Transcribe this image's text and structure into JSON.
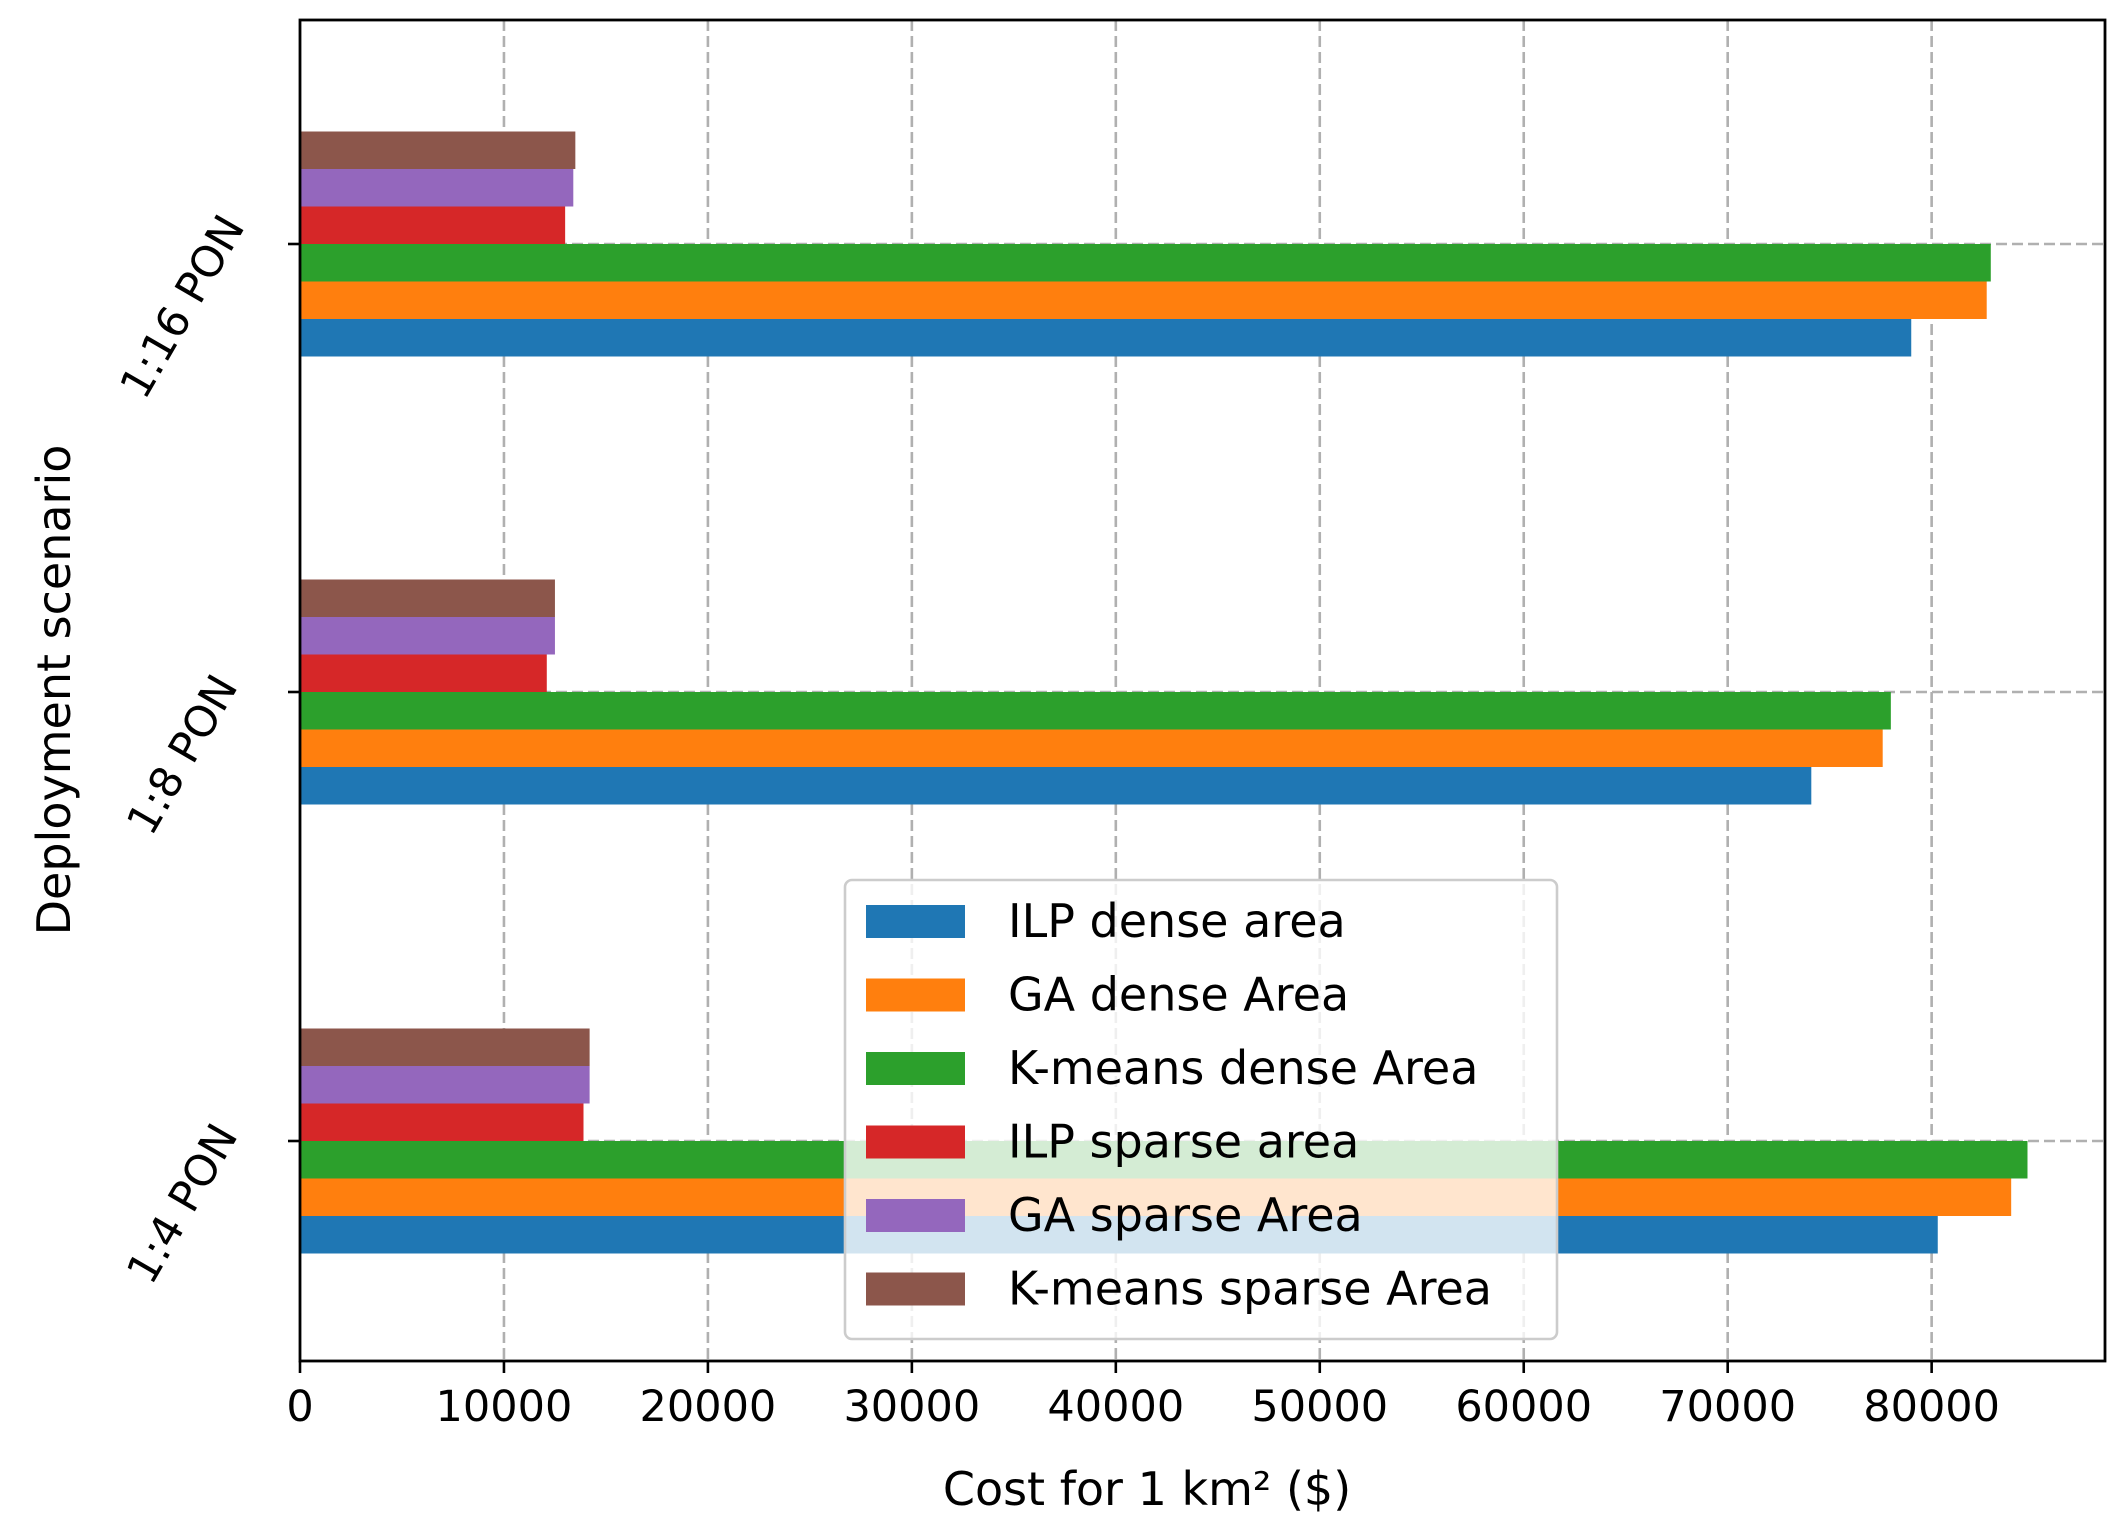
{
  "chart_data": {
    "type": "bar",
    "orientation": "horizontal",
    "title": "",
    "xlabel": "Cost for 1 km² ($)",
    "ylabel": "Deployment scenario",
    "xlim": [
      0,
      88500
    ],
    "x_ticks": [
      0,
      10000,
      20000,
      30000,
      40000,
      50000,
      60000,
      70000,
      80000
    ],
    "x_tick_labels": [
      "0",
      "10000",
      "20000",
      "30000",
      "40000",
      "50000",
      "60000",
      "70000",
      "80000"
    ],
    "categories": [
      "1:4 PON",
      "1:8 PON",
      "1:16 PON"
    ],
    "grid": true,
    "legend_position": "lower-center",
    "series": [
      {
        "name": "ILP dense area",
        "color": "#1f77b4",
        "values": [
          80300,
          74100,
          79000
        ]
      },
      {
        "name": "GA dense Area",
        "color": "#ff7f0e",
        "values": [
          83900,
          77600,
          82700
        ]
      },
      {
        "name": "K-means dense Area",
        "color": "#2ca02c",
        "values": [
          84700,
          78000,
          82900
        ]
      },
      {
        "name": "ILP sparse area",
        "color": "#d62728",
        "values": [
          13900,
          12100,
          13000
        ]
      },
      {
        "name": "GA sparse Area",
        "color": "#9467bd",
        "values": [
          14200,
          12500,
          13400
        ]
      },
      {
        "name": "K-means sparse Area",
        "color": "#8c564b",
        "values": [
          14200,
          12500,
          13500
        ]
      }
    ]
  }
}
